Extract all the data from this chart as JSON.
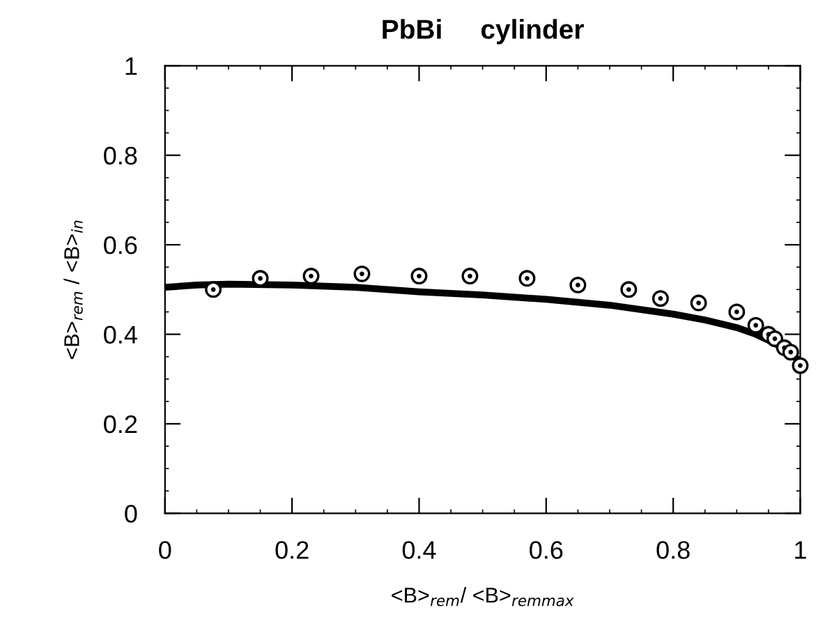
{
  "chart_data": {
    "type": "scatter",
    "title": "PbBi     cylinder",
    "xlabel": "<B>$_{rem}$/ <B>$_{remmax}$",
    "ylabel": "<B>$_{rem}$ / <B>$_{in}$",
    "xlim": [
      0,
      1
    ],
    "xticks": [
      0,
      0.2,
      0.4,
      0.6,
      0.8,
      1
    ],
    "ylim": [
      0,
      1
    ],
    "yticks": [
      0,
      0.2,
      0.4,
      0.6,
      0.8,
      1
    ],
    "grid": false,
    "legend": false,
    "series": [
      {
        "color": "#000000",
        "marker": "circle",
        "x": [
          0.076,
          0.15,
          0.23,
          0.31,
          0.4,
          0.48,
          0.57,
          0.65,
          0.73,
          0.78,
          0.84,
          0.9,
          0.93,
          0.95,
          0.96,
          0.975,
          0.985,
          1.0
        ],
        "values": [
          0.5,
          0.525,
          0.53,
          0.535,
          0.53,
          0.53,
          0.525,
          0.51,
          0.5,
          0.48,
          0.47,
          0.45,
          0.42,
          0.4,
          0.39,
          0.37,
          0.36,
          0.33
        ]
      },
      {
        "type": "line",
        "color": "#000000",
        "marker": "none",
        "line_style": "solid",
        "x": [
          0,
          0.05,
          0.1,
          0.2,
          0.3,
          0.4,
          0.5,
          0.6,
          0.7,
          0.8,
          0.85,
          0.9,
          0.93,
          0.96,
          0.98,
          1.0
        ],
        "values": [
          0.505,
          0.51,
          0.512,
          0.51,
          0.505,
          0.495,
          0.488,
          0.478,
          0.465,
          0.445,
          0.432,
          0.415,
          0.4,
          0.38,
          0.36,
          0.34
        ]
      }
    ]
  }
}
